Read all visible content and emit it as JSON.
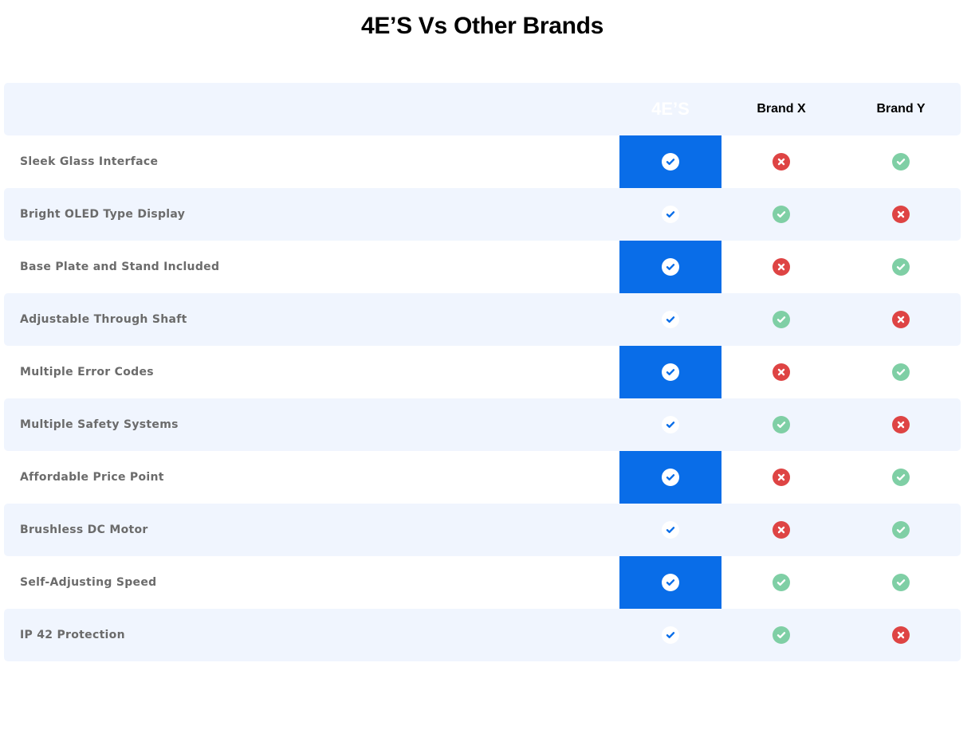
{
  "title": "4E’S Vs Other Brands",
  "colors": {
    "accent": "#096de8",
    "yes": "#7fcfa5",
    "no": "#de4444",
    "row_alt": "#f0f5fe"
  },
  "columns": [
    "4E’S",
    "Brand X",
    "Brand Y"
  ],
  "rows": [
    {
      "feature": "Sleek Glass Interface",
      "values": [
        true,
        false,
        true
      ]
    },
    {
      "feature": "Bright OLED Type Display",
      "values": [
        true,
        true,
        false
      ]
    },
    {
      "feature": "Base Plate and Stand Included",
      "values": [
        true,
        false,
        true
      ]
    },
    {
      "feature": "Adjustable Through Shaft",
      "values": [
        true,
        true,
        false
      ]
    },
    {
      "feature": "Multiple Error Codes",
      "values": [
        true,
        false,
        true
      ]
    },
    {
      "feature": "Multiple Safety Systems",
      "values": [
        true,
        true,
        false
      ]
    },
    {
      "feature": "Affordable Price Point",
      "values": [
        true,
        false,
        true
      ]
    },
    {
      "feature": "Brushless DC Motor",
      "values": [
        true,
        false,
        true
      ]
    },
    {
      "feature": "Self-Adjusting Speed",
      "values": [
        true,
        true,
        true
      ]
    },
    {
      "feature": "IP 42 Protection",
      "values": [
        true,
        true,
        false
      ]
    }
  ]
}
